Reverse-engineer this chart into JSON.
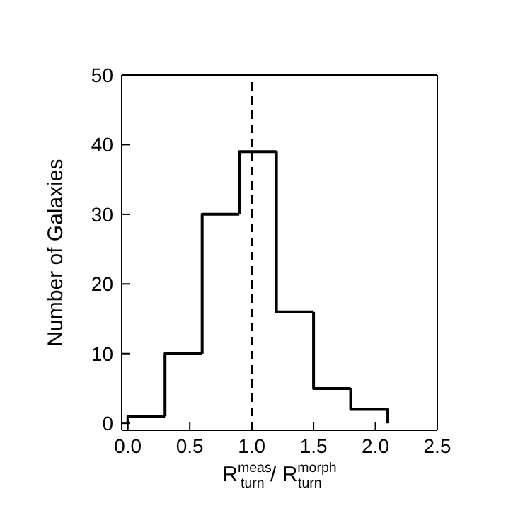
{
  "chart_data": {
    "type": "histogram",
    "xlabel": "R$^{meas}$$_{turn}$ / R$^{morph}$$_{turn}$",
    "ylabel": "Number of Galaxies",
    "bins": [
      0.0,
      0.3,
      0.6,
      0.9,
      1.2,
      1.5,
      1.8,
      2.1
    ],
    "values": [
      1,
      10,
      30,
      39,
      16,
      5,
      2
    ],
    "color": "#000000",
    "xlim": [
      -0.05,
      2.5
    ],
    "xticks": [
      {
        "value": 0,
        "label": "0.0"
      },
      0.5,
      {
        "value": 1,
        "label": "1.0"
      },
      1.5,
      {
        "value": 2,
        "label": "2.0"
      },
      2.5
    ],
    "ylim": [
      -1,
      50
    ],
    "yticks": [
      0,
      10,
      20,
      30,
      40,
      50
    ],
    "ref_lines": [
      {
        "axis": "x",
        "value": 1.0,
        "line_style": "dashed",
        "color": "#000000"
      }
    ],
    "grid": false
  }
}
